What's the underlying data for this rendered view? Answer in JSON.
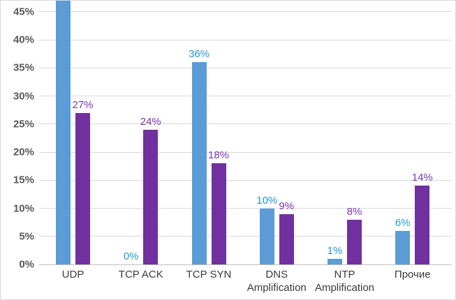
{
  "chart_data": {
    "type": "bar",
    "title": "",
    "xlabel": "",
    "ylabel": "",
    "categories": [
      "UDP",
      "TCP ACK",
      "TCP SYN",
      "DNS Amplification",
      "NTP Amplification",
      "Прочие"
    ],
    "category_lines": [
      [
        "UDP"
      ],
      [
        "TCP ACK"
      ],
      [
        "TCP SYN"
      ],
      [
        "DNS",
        "Amplification"
      ],
      [
        "NTP",
        "Amplification"
      ],
      [
        "Прочие"
      ]
    ],
    "series": [
      {
        "name": "blue",
        "color": "#5b9cd6",
        "label_color": "#2396d5",
        "values": [
          47,
          0,
          36,
          10,
          1,
          6
        ],
        "data_labels": [
          "",
          "0%",
          "36%",
          "10%",
          "1%",
          "6%"
        ]
      },
      {
        "name": "purple",
        "color": "#7030a0",
        "label_color": "#7a36b1",
        "values": [
          27,
          24,
          18,
          9,
          8,
          14
        ],
        "data_labels": [
          "27%",
          "24%",
          "18%",
          "9%",
          "8%",
          "14%"
        ]
      }
    ],
    "y_ticks": [
      "0%",
      "5%",
      "10%",
      "15%",
      "20%",
      "25%",
      "30%",
      "35%",
      "40%",
      "45%"
    ],
    "ylim": [
      0,
      47
    ],
    "grid": true,
    "legend": null,
    "note_top_bar_clipped": "blue UDP bar is clipped at top edge; its data label is not visible"
  },
  "colors": {
    "gridline": "#d9d9d9",
    "axis_line": "#bfbfbf",
    "y_tick_text": "#595959",
    "category_text": "#3a3a3a",
    "chart_border": "#d9d9d9",
    "background": "#ffffff"
  }
}
